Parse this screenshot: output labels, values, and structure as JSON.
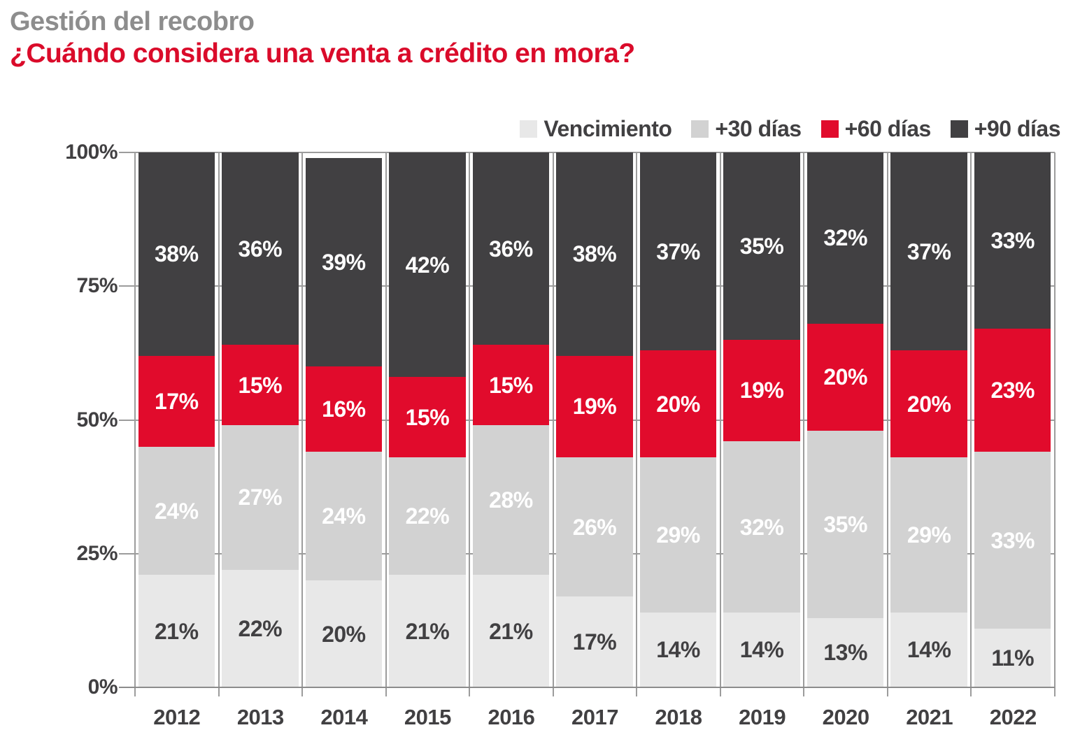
{
  "header": {
    "title": "Gestión del recobro",
    "subtitle": "¿Cuándo considera una venta a crédito en mora?",
    "title_color": "#8d8d8d",
    "subtitle_color": "#da0b2a"
  },
  "colors": {
    "vencimiento": "#e8e8e8",
    "dias30": "#d2d2d2",
    "dias60": "#e10b2c",
    "dias90": "#414042",
    "grid": "#9c9c9c",
    "axis": "#8c8c8c",
    "text_dark": "#414042"
  },
  "legend": {
    "items": [
      {
        "label": "Vencimiento",
        "color": "#e8e8e8"
      },
      {
        "label": "+30 días",
        "color": "#d2d2d2"
      },
      {
        "label": "+60 días",
        "color": "#e10b2c"
      },
      {
        "label": "+90 días",
        "color": "#414042"
      }
    ]
  },
  "chart_data": {
    "type": "bar",
    "stacked": true,
    "unit": "%",
    "title": "Gestión del recobro",
    "subtitle": "¿Cuándo considera una venta a crédito en mora?",
    "categories": [
      "2012",
      "2013",
      "2014",
      "2015",
      "2016",
      "2017",
      "2018",
      "2019",
      "2020",
      "2021",
      "2022"
    ],
    "series": [
      {
        "name": "Vencimiento",
        "color": "#e8e8e8",
        "label_color": "#414042",
        "values": [
          21,
          22,
          20,
          21,
          21,
          17,
          14,
          14,
          13,
          14,
          11
        ]
      },
      {
        "name": "+30 días",
        "color": "#d2d2d2",
        "label_color": "#ffffff",
        "values": [
          24,
          27,
          24,
          22,
          28,
          26,
          29,
          32,
          35,
          29,
          33
        ]
      },
      {
        "name": "+60 días",
        "color": "#e10b2c",
        "label_color": "#ffffff",
        "values": [
          17,
          15,
          16,
          15,
          15,
          19,
          20,
          19,
          20,
          20,
          23
        ]
      },
      {
        "name": "+90 días",
        "color": "#414042",
        "label_color": "#ffffff",
        "values": [
          38,
          36,
          39,
          42,
          36,
          38,
          37,
          35,
          32,
          37,
          33
        ]
      }
    ],
    "yticks": [
      "0%",
      "25%",
      "50%",
      "75%",
      "100%"
    ],
    "ylim": [
      0,
      100
    ],
    "xlabel": "",
    "ylabel": "",
    "legend_position": "top-right",
    "grid": "vertical-column-separators-with-ticks"
  }
}
